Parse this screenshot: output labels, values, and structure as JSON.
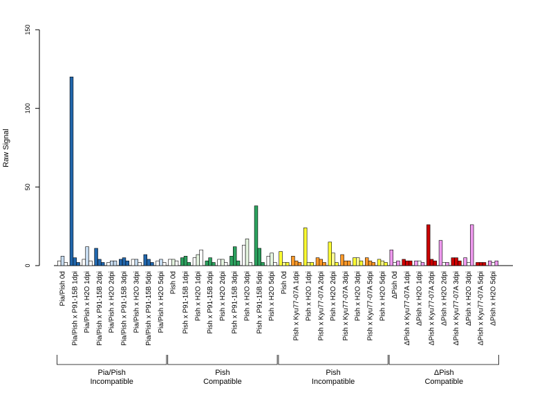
{
  "chart_data": {
    "type": "bar",
    "title": "",
    "xlabel": "",
    "ylabel": "Raw Signal",
    "ylim": [
      0,
      150
    ],
    "yticks": [
      0,
      50,
      100,
      150
    ],
    "grid": false,
    "legend": "none",
    "categories": [
      "Pia/Pish 0d",
      "Pia/Pish x P91-15B 1dpi",
      "Pia/Pish x H2O 1dpi",
      "Pia/Pish x P91-15B 2dpi",
      "Pia/Pish x H2O 2dpi",
      "Pia/Pish x P91-15B 3dpi",
      "Pia/Pish x H2O 3dpi",
      "Pia/Pish x P91-15B 5dpi",
      "Pia/Pish x H2O 5dpi",
      "Pish 0d",
      "Pish x P91-15B 1dpi",
      "Pish x H2O 1dpi",
      "Pish x P91-15B 2dpi",
      "Pish x H2O 2dpi",
      "Pish x P91-15B 3dpi",
      "Pish x H2O 3dpi",
      "Pish x P91-15B 5dpi",
      "Pish x H2O 5dpi",
      "Pish 0d",
      "Pish x Kyu77-07A 1dpi",
      "Pish x H2O 1dpi",
      "Pish x Kyu77-07A 2dpi",
      "Pish x H2O 2dpi",
      "Pish x Kyu77-07A 3dpi",
      "Pish x H2O 3dpi",
      "Pish x Kyu77-07A 5dpi",
      "Pish x H2O 5dpi",
      "ΔPish 0d",
      "ΔPish x Kyu77-07A 1dpi",
      "ΔPish x H2O 1dpi",
      "ΔPish x Kyu77-07A 2dpi",
      "ΔPish x H2O 2dpi",
      "ΔPish x Kyu77-07A 3dpi",
      "ΔPish x H2O 3dpi",
      "ΔPish x Kyu77-07A 5dpi",
      "ΔPish x H2O 5dpi"
    ],
    "replicate_values": [
      [
        3,
        6,
        2
      ],
      [
        120,
        5,
        2
      ],
      [
        4,
        12,
        3
      ],
      [
        11,
        4,
        2
      ],
      [
        2,
        3,
        3
      ],
      [
        4,
        5,
        3
      ],
      [
        4,
        4,
        2
      ],
      [
        7,
        4,
        2
      ],
      [
        3,
        4,
        2
      ],
      [
        4,
        4,
        3
      ],
      [
        5,
        6,
        2
      ],
      [
        5,
        7,
        10
      ],
      [
        3,
        5,
        2
      ],
      [
        4,
        4,
        2
      ],
      [
        6,
        12,
        3
      ],
      [
        13,
        17,
        2
      ],
      [
        38,
        11,
        2
      ],
      [
        6,
        8,
        2
      ],
      [
        9,
        2,
        2
      ],
      [
        6,
        3,
        2
      ],
      [
        24,
        2,
        2
      ],
      [
        5,
        4,
        2
      ],
      [
        15,
        8,
        2
      ],
      [
        7,
        3,
        3
      ],
      [
        5,
        5,
        3
      ],
      [
        5,
        3,
        2
      ],
      [
        4,
        3,
        2
      ],
      [
        10,
        2,
        3
      ],
      [
        4,
        3,
        3
      ],
      [
        3,
        3,
        2
      ],
      [
        26,
        4,
        3
      ],
      [
        16,
        2,
        2
      ],
      [
        5,
        5,
        3
      ],
      [
        5,
        2,
        26
      ],
      [
        2,
        2,
        2
      ],
      [
        3,
        2,
        3
      ]
    ],
    "bar_colors": [
      [
        "#ffffff",
        "#c6dbef",
        "#ffffff"
      ],
      [
        "#2166ac",
        "#2166ac",
        "#2166ac"
      ],
      [
        "#ffffff",
        "#c6dbef",
        "#ffffff"
      ],
      [
        "#2166ac",
        "#2166ac",
        "#2166ac"
      ],
      [
        "#ffffff",
        "#c6dbef",
        "#c6dbef"
      ],
      [
        "#2166ac",
        "#2166ac",
        "#2166ac"
      ],
      [
        "#ffffff",
        "#c6dbef",
        "#ffffff"
      ],
      [
        "#2166ac",
        "#2166ac",
        "#2166ac"
      ],
      [
        "#ffffff",
        "#c6dbef",
        "#ffffff"
      ],
      [
        "#ffffff",
        "#e5f5e0",
        "#ffffff"
      ],
      [
        "#2ca25f",
        "#2ca25f",
        "#2ca25f"
      ],
      [
        "#ffffff",
        "#e5f5e0",
        "#ffffff"
      ],
      [
        "#2ca25f",
        "#2ca25f",
        "#2ca25f"
      ],
      [
        "#ffffff",
        "#e5f5e0",
        "#ffffff"
      ],
      [
        "#2ca25f",
        "#2ca25f",
        "#2ca25f"
      ],
      [
        "#ffffff",
        "#e5f5e0",
        "#ffffff"
      ],
      [
        "#2ca25f",
        "#2ca25f",
        "#2ca25f"
      ],
      [
        "#ffffff",
        "#e5f5e0",
        "#ffffff"
      ],
      [
        "#ffff33",
        "#ffff99",
        "#ffff33"
      ],
      [
        "#fe9929",
        "#fe9929",
        "#fe9929"
      ],
      [
        "#ffff33",
        "#ffff99",
        "#ffff33"
      ],
      [
        "#fe9929",
        "#fe9929",
        "#fe9929"
      ],
      [
        "#ffff33",
        "#ffff99",
        "#ffff33"
      ],
      [
        "#fe9929",
        "#fe9929",
        "#fe9929"
      ],
      [
        "#ffff33",
        "#ffff99",
        "#ffff33"
      ],
      [
        "#fe9929",
        "#fe9929",
        "#fe9929"
      ],
      [
        "#ffff33",
        "#ffff99",
        "#ffff33"
      ],
      [
        "#ee99ee",
        "#ffffff",
        "#ee99ee"
      ],
      [
        "#cc0000",
        "#cc0000",
        "#cc0000"
      ],
      [
        "#ee99ee",
        "#ffffff",
        "#ee99ee"
      ],
      [
        "#cc0000",
        "#cc0000",
        "#cc0000"
      ],
      [
        "#ee99ee",
        "#ffffff",
        "#ee99ee"
      ],
      [
        "#cc0000",
        "#cc0000",
        "#cc0000"
      ],
      [
        "#ee99ee",
        "#ffffff",
        "#ee99ee"
      ],
      [
        "#cc0000",
        "#cc0000",
        "#cc0000"
      ],
      [
        "#ee99ee",
        "#ffffff",
        "#ee99ee"
      ]
    ],
    "groups": [
      {
        "label": "Pia/Pish\nIncompatible",
        "start": 0,
        "end": 8
      },
      {
        "label": "Pish\nCompatible",
        "start": 9,
        "end": 17
      },
      {
        "label": "Pish\nIncompatible",
        "start": 18,
        "end": 26
      },
      {
        "label": "ΔPish\nCompatible",
        "start": 27,
        "end": 35
      }
    ]
  }
}
